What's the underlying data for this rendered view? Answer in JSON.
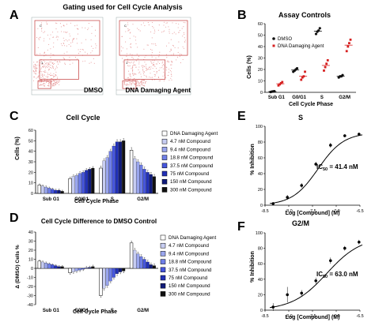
{
  "figure": {
    "panel_letters": [
      "A",
      "B",
      "C",
      "D",
      "E",
      "F"
    ],
    "colors": {
      "dmso": "#111111",
      "damaging": "#d62020",
      "flow_dots": "#e89a9a",
      "gate": "#c43a3a",
      "grid_light": "#dddddd",
      "compound_shades": [
        "#ffffff",
        "#c7cdf2",
        "#9aa6ee",
        "#6f7fe8",
        "#4656dd",
        "#2231b8",
        "#111c7a",
        "#111111"
      ]
    }
  },
  "chart_data": [
    {
      "panel": "A",
      "type": "scatter",
      "title": "Gating used for Cell Cycle Analysis",
      "plots": [
        {
          "label": "DMSO",
          "gate_labels": [
            "C",
            "1"
          ]
        },
        {
          "label": "DNA Damaging Agent",
          "gate_labels": [
            "C",
            "1"
          ]
        }
      ]
    },
    {
      "panel": "B",
      "type": "scatter",
      "title": "Assay Controls",
      "xlabel": "Cell Cycle Phase",
      "ylabel": "Cells (%)",
      "categories": [
        "Sub G1",
        "G0/G1",
        "S",
        "G2/M"
      ],
      "ylim": [
        0,
        60
      ],
      "yticks": [
        0,
        10,
        20,
        30,
        40,
        50,
        60
      ],
      "legend": "top-left",
      "series": [
        {
          "name": "DMSO",
          "color": "#111111",
          "marker": "circle",
          "points": [
            [
              0.3,
              0.6,
              0.8,
              1.0
            ],
            [
              18,
              19,
              20,
              21
            ],
            [
              51,
              53,
              54,
              56
            ],
            [
              13,
              14,
              14,
              15
            ]
          ]
        },
        {
          "name": "DNA Damaging Agent",
          "color": "#d62020",
          "marker": "square",
          "points": [
            [
              6,
              7,
              8,
              9
            ],
            [
              11,
              13,
              14,
              18
            ],
            [
              19,
              22,
              25,
              28
            ],
            [
              36,
              40,
              43,
              46
            ]
          ]
        }
      ]
    },
    {
      "panel": "C",
      "type": "bar",
      "title": "Cell Cycle",
      "xlabel": "Cell Cycle Phase",
      "ylabel": "Cells (%)",
      "categories": [
        "Sub G1",
        "G0/G1",
        "S",
        "G2/M"
      ],
      "ylim": [
        0,
        60
      ],
      "yticks": [
        0,
        10,
        20,
        30,
        40,
        50,
        60
      ],
      "legend": "right",
      "series": [
        {
          "name": "DNA Damaging Agent",
          "values": [
            8,
            14,
            24,
            41
          ],
          "errors": [
            1,
            1.5,
            2,
            2.5
          ]
        },
        {
          "name": "4.7 nM Compound",
          "values": [
            7,
            16,
            31,
            33
          ],
          "errors": [
            1,
            1.5,
            2,
            2
          ]
        },
        {
          "name": "9.4 nM Compound",
          "values": [
            6,
            17,
            34,
            30
          ],
          "errors": [
            1,
            1.5,
            2,
            2
          ]
        },
        {
          "name": "18.8 nM Compound",
          "values": [
            5,
            19,
            40,
            27
          ],
          "errors": [
            1,
            1.5,
            2,
            2
          ]
        },
        {
          "name": "37.5 nM Compound",
          "values": [
            4,
            20,
            45,
            23
          ],
          "errors": [
            1,
            1.5,
            2,
            2
          ]
        },
        {
          "name": "75 nM Compound",
          "values": [
            3,
            22,
            49,
            20
          ],
          "errors": [
            1,
            1.5,
            2,
            2
          ]
        },
        {
          "name": "150 nM Compound",
          "values": [
            3,
            23,
            49,
            18
          ],
          "errors": [
            1,
            1.5,
            2,
            2
          ]
        },
        {
          "name": "300 nM Compound",
          "values": [
            2,
            24,
            50,
            16
          ],
          "errors": [
            1,
            1.5,
            2,
            2
          ]
        }
      ]
    },
    {
      "panel": "D",
      "type": "bar",
      "title": "Cell Cycle Difference to DMSO Control",
      "xlabel": "Cell Cycle Phase",
      "ylabel": "Δ (DMSO) Cells %",
      "categories": [
        "Sub G1",
        "G0/G1",
        "S",
        "G2/M"
      ],
      "ylim": [
        -40,
        40
      ],
      "yticks": [
        -40,
        -30,
        -20,
        -10,
        0,
        10,
        20,
        30,
        40
      ],
      "legend": "right",
      "series": [
        {
          "name": "DNA Damaging Agent",
          "values": [
            8,
            -5,
            -30,
            28
          ],
          "errors": [
            1,
            1.5,
            2,
            2
          ]
        },
        {
          "name": "4.7 nM Compound",
          "values": [
            7,
            -4,
            -22,
            20
          ],
          "errors": [
            1,
            1.5,
            2,
            2
          ]
        },
        {
          "name": "9.4 nM Compound",
          "values": [
            6,
            -3,
            -19,
            16
          ],
          "errors": [
            1,
            1.5,
            2,
            2
          ]
        },
        {
          "name": "18.8 nM Compound",
          "values": [
            5,
            -2,
            -14,
            13
          ],
          "errors": [
            1,
            1.5,
            2,
            2
          ]
        },
        {
          "name": "37.5 nM Compound",
          "values": [
            4,
            -1,
            -10,
            10
          ],
          "errors": [
            1,
            1.5,
            2,
            2
          ]
        },
        {
          "name": "75 nM Compound",
          "values": [
            3,
            0.5,
            -6,
            7
          ],
          "errors": [
            1,
            1.5,
            2,
            2
          ]
        },
        {
          "name": "150 nM Compound",
          "values": [
            2,
            1,
            -4,
            4
          ],
          "errors": [
            1,
            1.5,
            2,
            2
          ]
        },
        {
          "name": "300 nM Compound",
          "values": [
            2,
            2,
            -3,
            3
          ],
          "errors": [
            1,
            1.5,
            2,
            2
          ]
        }
      ]
    },
    {
      "panel": "E",
      "type": "scatter",
      "title": "S",
      "xlabel": "Log [Compound] (M)",
      "ylabel": "% Inhibition",
      "xlim": [
        -8.5,
        -6.5
      ],
      "xticks": [
        -8.5,
        -8.0,
        -7.5,
        -7.0,
        -6.5
      ],
      "ylim": [
        0,
        100
      ],
      "yticks": [
        0,
        20,
        40,
        60,
        80,
        100
      ],
      "annotation": {
        "text": "IC",
        "sub": "50",
        "rest": " = 41.4 nM"
      },
      "points": [
        {
          "x": -8.33,
          "y": 2,
          "err": 2
        },
        {
          "x": -8.03,
          "y": 10,
          "err": 3
        },
        {
          "x": -7.73,
          "y": 25,
          "err": 3
        },
        {
          "x": -7.43,
          "y": 52,
          "err": 3
        },
        {
          "x": -7.12,
          "y": 76,
          "err": 3
        },
        {
          "x": -6.82,
          "y": 88,
          "err": 2
        },
        {
          "x": -6.52,
          "y": 90,
          "err": 2
        }
      ],
      "fit": {
        "bottom": 0,
        "top": 92,
        "logIC50": -7.383,
        "hill": 1.6
      }
    },
    {
      "panel": "F",
      "type": "scatter",
      "title": "G2/M",
      "xlabel": "Log [Compound] (M)",
      "ylabel": "% Inhibition",
      "xlim": [
        -8.5,
        -6.5
      ],
      "xticks": [
        -8.5,
        -8.0,
        -7.5,
        -7.0,
        -6.5
      ],
      "ylim": [
        0,
        100
      ],
      "yticks": [
        0,
        20,
        40,
        60,
        80,
        100
      ],
      "annotation": {
        "text": "IC",
        "sub": "50",
        "rest": " = 63.0 nM"
      },
      "points": [
        {
          "x": -8.33,
          "y": 4,
          "err": 5
        },
        {
          "x": -8.03,
          "y": 20,
          "err": 10
        },
        {
          "x": -7.73,
          "y": 22,
          "err": 4
        },
        {
          "x": -7.43,
          "y": 38,
          "err": 4
        },
        {
          "x": -7.12,
          "y": 64,
          "err": 4
        },
        {
          "x": -6.82,
          "y": 80,
          "err": 3
        },
        {
          "x": -6.52,
          "y": 88,
          "err": 3
        }
      ],
      "fit": {
        "bottom": 0,
        "top": 95,
        "logIC50": -7.2,
        "hill": 1.2
      }
    }
  ]
}
